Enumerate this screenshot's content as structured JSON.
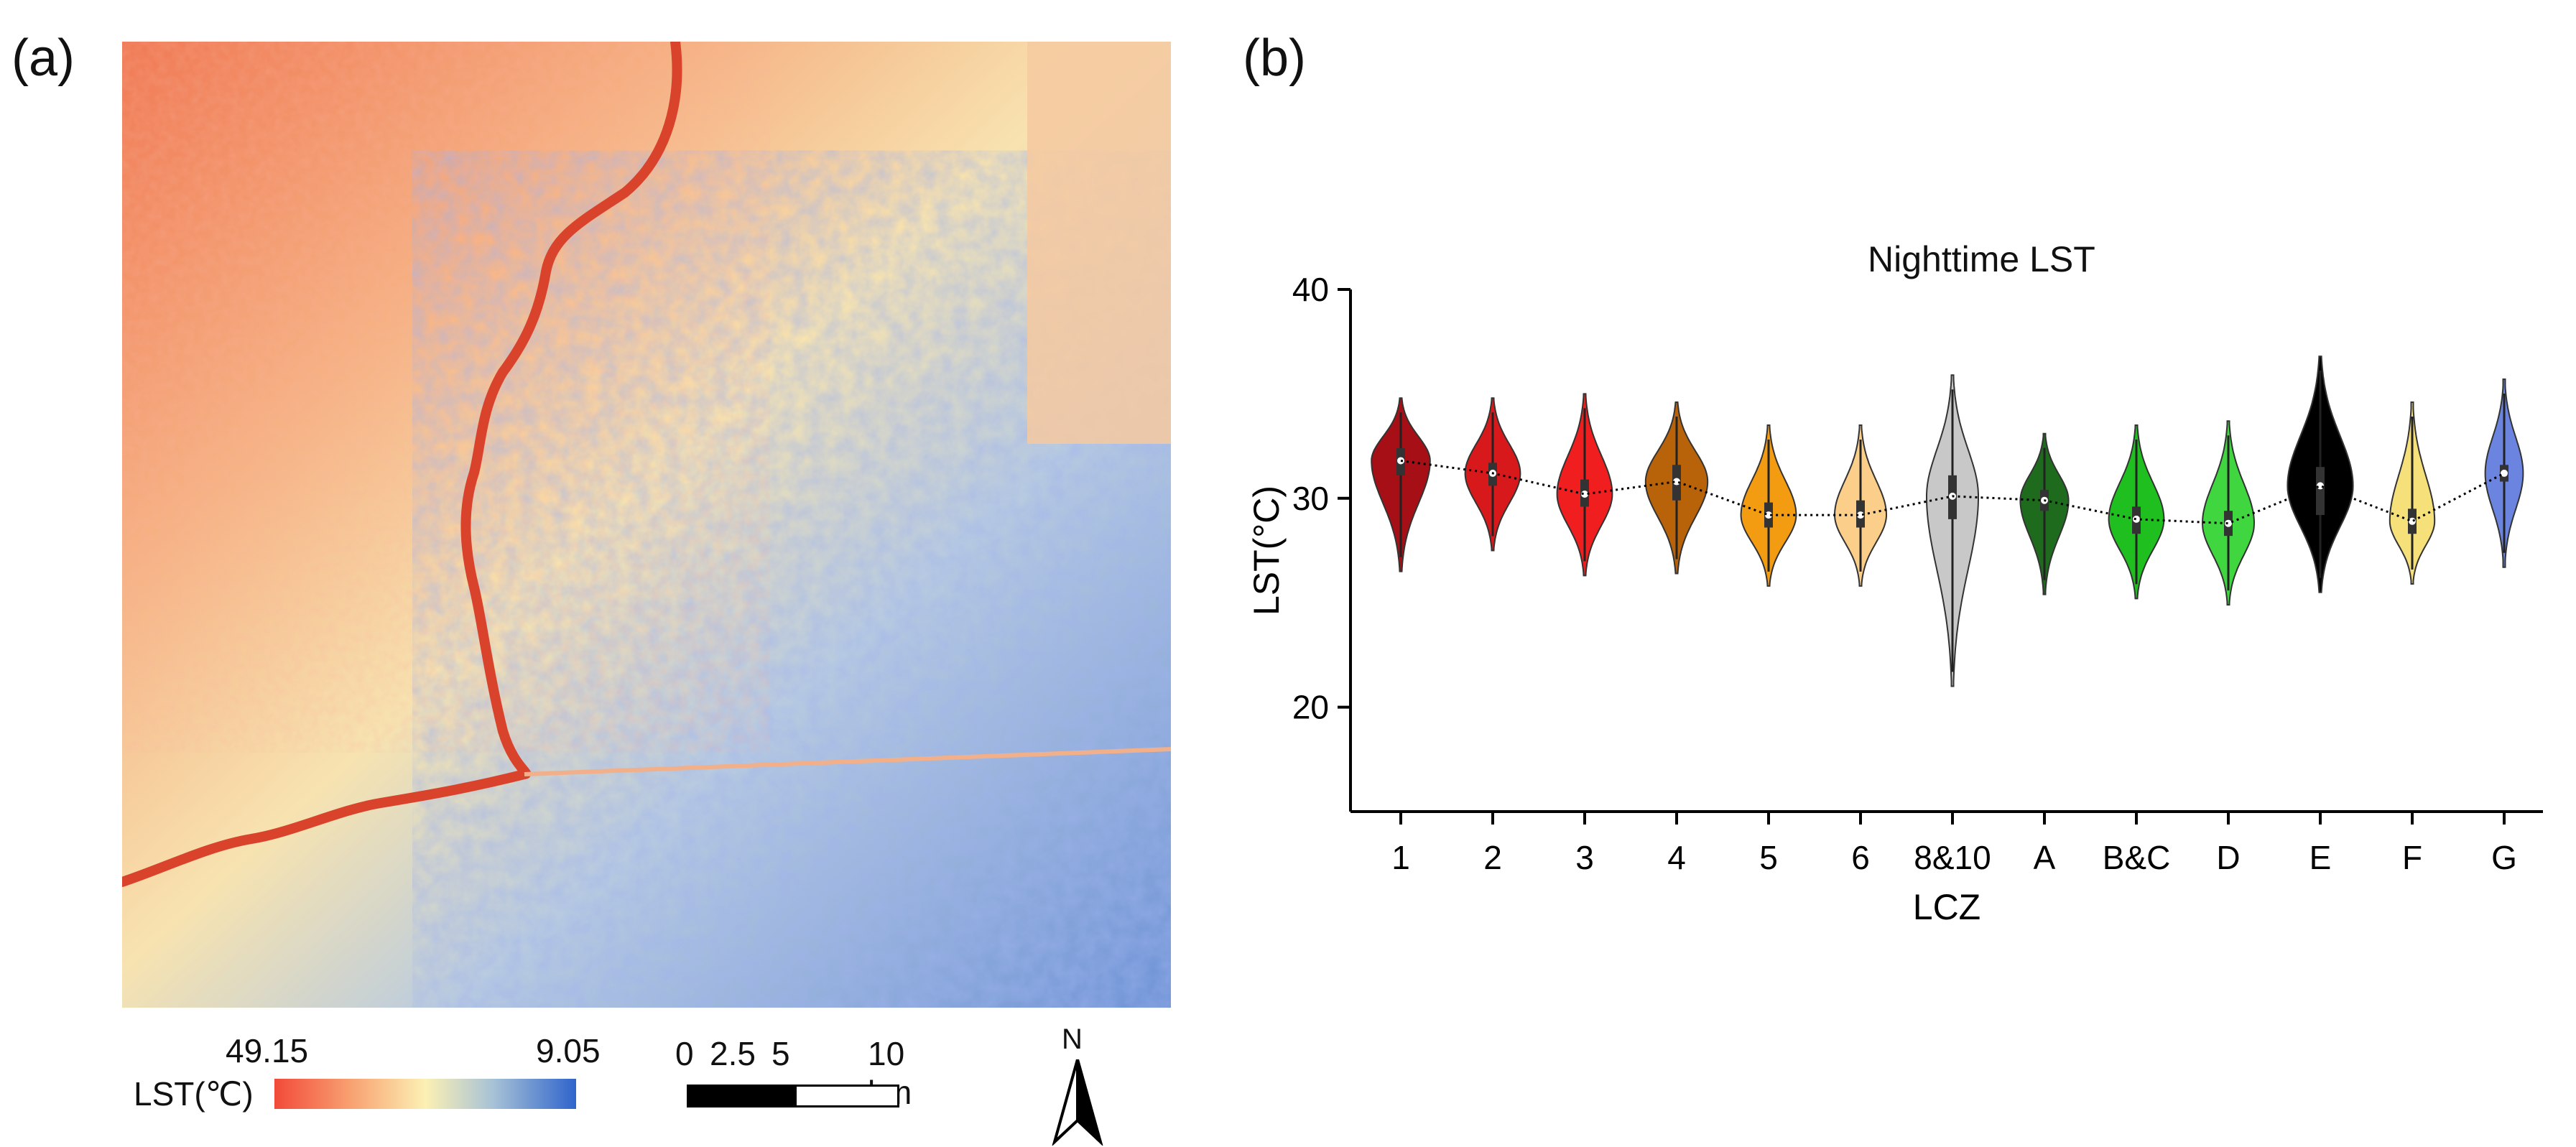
{
  "panels": {
    "a": "(a)",
    "b": "(b)"
  },
  "map": {
    "legend_title": "LST(℃)",
    "legend_max": "49.15",
    "legend_min": "9.05",
    "colors": {
      "hot": "#f24a3a",
      "warm": "#f8a070",
      "mid": "#fcf0b4",
      "cool": "#a9c3d6",
      "cold": "#2f64cc",
      "river": "#d9432c"
    },
    "scale_ticks": [
      "0",
      "2.5",
      "5",
      "10 km"
    ],
    "north_label": "N"
  },
  "chart_data": {
    "type": "violin",
    "title": "Nighttime LST",
    "xlabel": "LCZ",
    "ylabel": "LST(°C)",
    "ylim": [
      15,
      40
    ],
    "yticks": [
      20,
      30,
      40
    ],
    "categories": [
      "1",
      "2",
      "3",
      "4",
      "5",
      "6",
      "8&10",
      "A",
      "B&C",
      "D",
      "E",
      "F",
      "G"
    ],
    "colors": [
      "#a50f15",
      "#d7191c",
      "#f01e1e",
      "#b8620a",
      "#f39c12",
      "#fbce8a",
      "#c8c8c8",
      "#1e6b1e",
      "#1fbf1f",
      "#3fd63f",
      "#000000",
      "#f5e07a",
      "#6b84e0"
    ],
    "medians": [
      31.8,
      31.2,
      30.2,
      30.8,
      29.2,
      29.2,
      30.1,
      29.9,
      29.0,
      28.8,
      30.6,
      28.9,
      31.2
    ],
    "q1": [
      31.1,
      30.6,
      29.6,
      29.9,
      28.6,
      28.6,
      29.0,
      29.4,
      28.3,
      28.2,
      29.2,
      28.3,
      30.8
    ],
    "q3": [
      32.4,
      31.7,
      30.9,
      31.6,
      29.8,
      29.9,
      31.1,
      30.4,
      29.6,
      29.4,
      31.5,
      29.5,
      31.6
    ],
    "min": [
      26.5,
      27.5,
      26.3,
      26.4,
      25.8,
      25.8,
      21.0,
      25.4,
      25.2,
      24.9,
      25.5,
      25.9,
      26.7
    ],
    "max": [
      34.8,
      34.8,
      35.0,
      34.6,
      33.5,
      33.5,
      35.9,
      33.1,
      33.5,
      33.7,
      36.8,
      34.6,
      35.7
    ],
    "widths": [
      0.85,
      0.8,
      0.8,
      0.9,
      0.8,
      0.75,
      0.75,
      0.7,
      0.8,
      0.75,
      0.95,
      0.65,
      0.55
    ]
  }
}
